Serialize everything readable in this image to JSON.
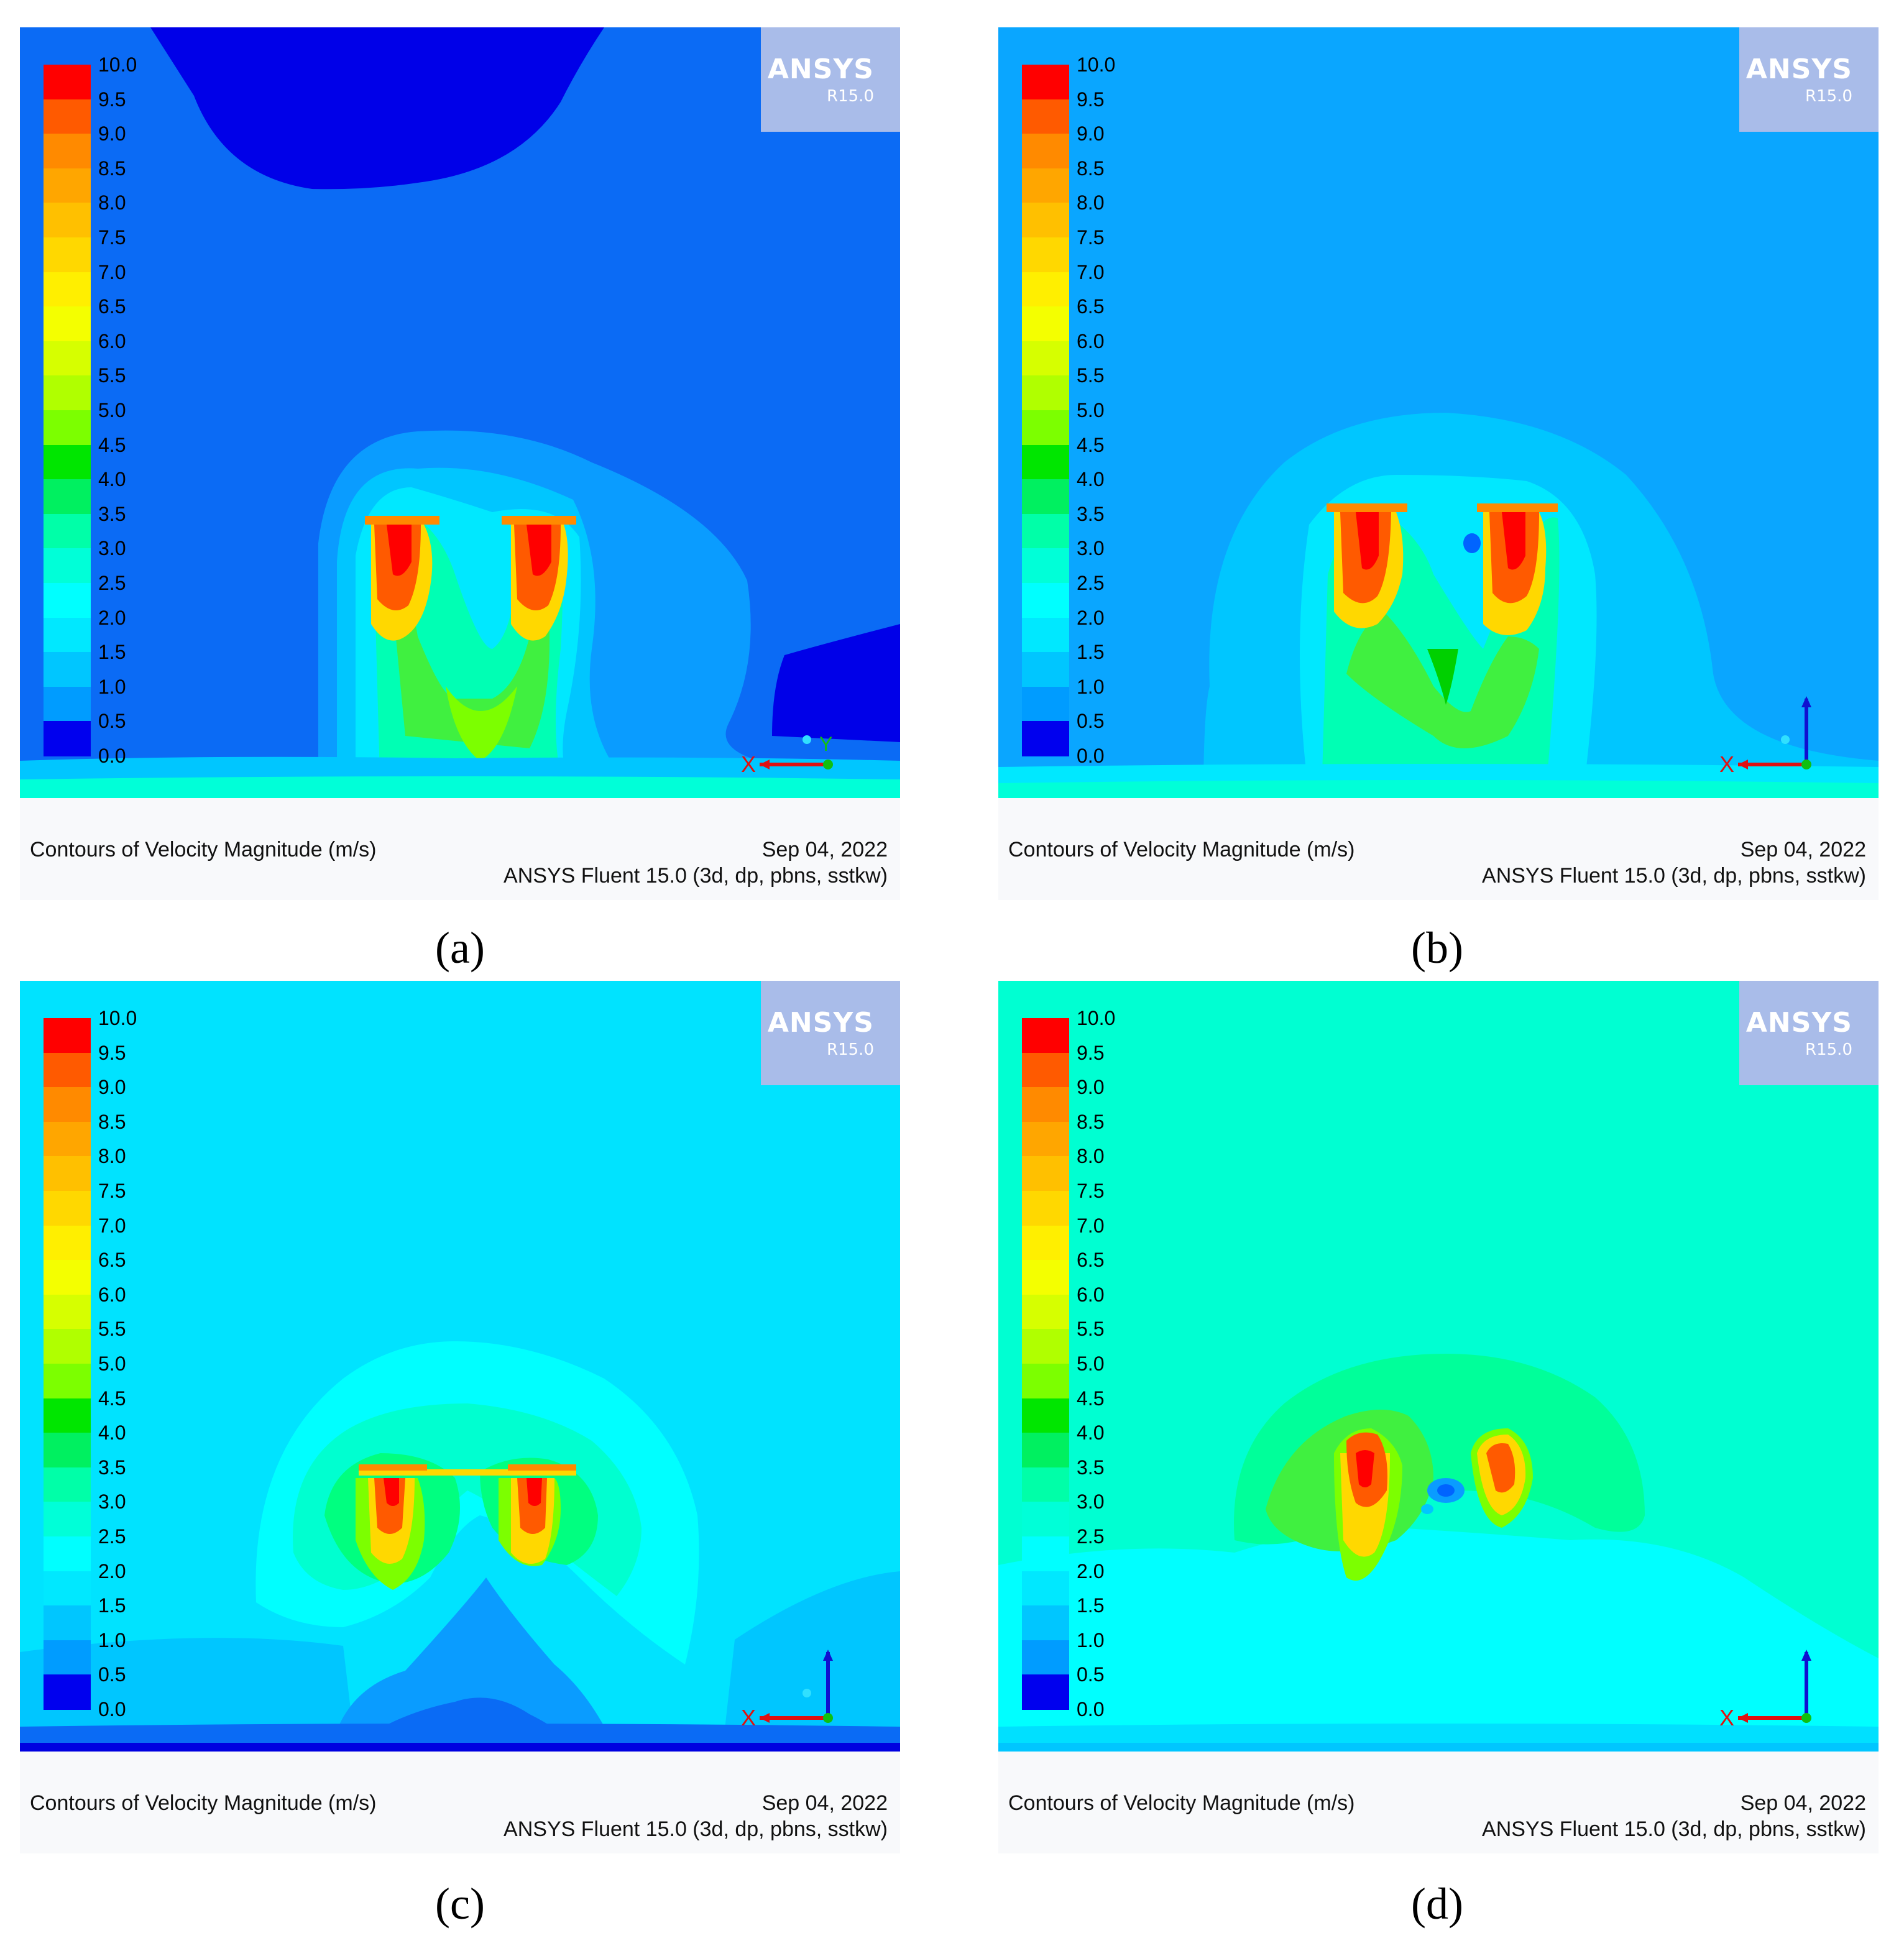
{
  "figure": {
    "panels": [
      {
        "label": "(a)",
        "caption_left": "Contours of Velocity Magnitude (m/s)",
        "caption_date": "Sep 04, 2022",
        "caption_software": "ANSYS Fluent 15.0 (3d, dp, pbns, sstkw)",
        "brand_name": "ANSYS",
        "brand_version": "R15.0",
        "background_color": "#0b6bf5",
        "axis_x_label": "X",
        "axis_y_label": "Y"
      },
      {
        "label": "(b)",
        "caption_left": "Contours of Velocity Magnitude (m/s)",
        "caption_date": "Sep 04, 2022",
        "caption_software": "ANSYS Fluent 15.0 (3d, dp, pbns, sstkw)",
        "brand_name": "ANSYS",
        "brand_version": "R15.0",
        "background_color": "#0aa6ff",
        "axis_x_label": "X",
        "axis_y_label": ""
      },
      {
        "label": "(c)",
        "caption_left": "Contours of Velocity Magnitude (m/s)",
        "caption_date": "Sep 04, 2022",
        "caption_software": "ANSYS Fluent 15.0 (3d, dp, pbns, sstkw)",
        "brand_name": "ANSYS",
        "brand_version": "R15.0",
        "background_color": "#00e3ff",
        "axis_x_label": "X",
        "axis_y_label": ""
      },
      {
        "label": "(d)",
        "caption_left": "Contours of Velocity Magnitude (m/s)",
        "caption_date": "Sep 04, 2022",
        "caption_software": "ANSYS Fluent 15.0 (3d, dp, pbns, sstkw)",
        "brand_name": "ANSYS",
        "brand_version": "R15.0",
        "background_color": "#00ffd2",
        "axis_x_label": "X",
        "axis_y_label": ""
      }
    ],
    "legend": {
      "ticks": [
        "10.0",
        "9.5",
        "9.0",
        "8.5",
        "8.0",
        "7.5",
        "7.0",
        "6.5",
        "6.0",
        "5.5",
        "5.0",
        "4.5",
        "4.0",
        "3.5",
        "3.0",
        "2.5",
        "2.0",
        "1.5",
        "1.0",
        "0.5",
        "0.0"
      ],
      "colors": [
        "#ff0000",
        "#ff5a00",
        "#ff8a00",
        "#ffa600",
        "#ffc000",
        "#ffd800",
        "#ffef00",
        "#f4ff00",
        "#d6ff00",
        "#b0ff00",
        "#7cff00",
        "#00e600",
        "#00f060",
        "#00ffa8",
        "#00ffd8",
        "#00ffff",
        "#00e8ff",
        "#00c6ff",
        "#009cff",
        "#0064ff",
        "#0000ee"
      ]
    }
  }
}
